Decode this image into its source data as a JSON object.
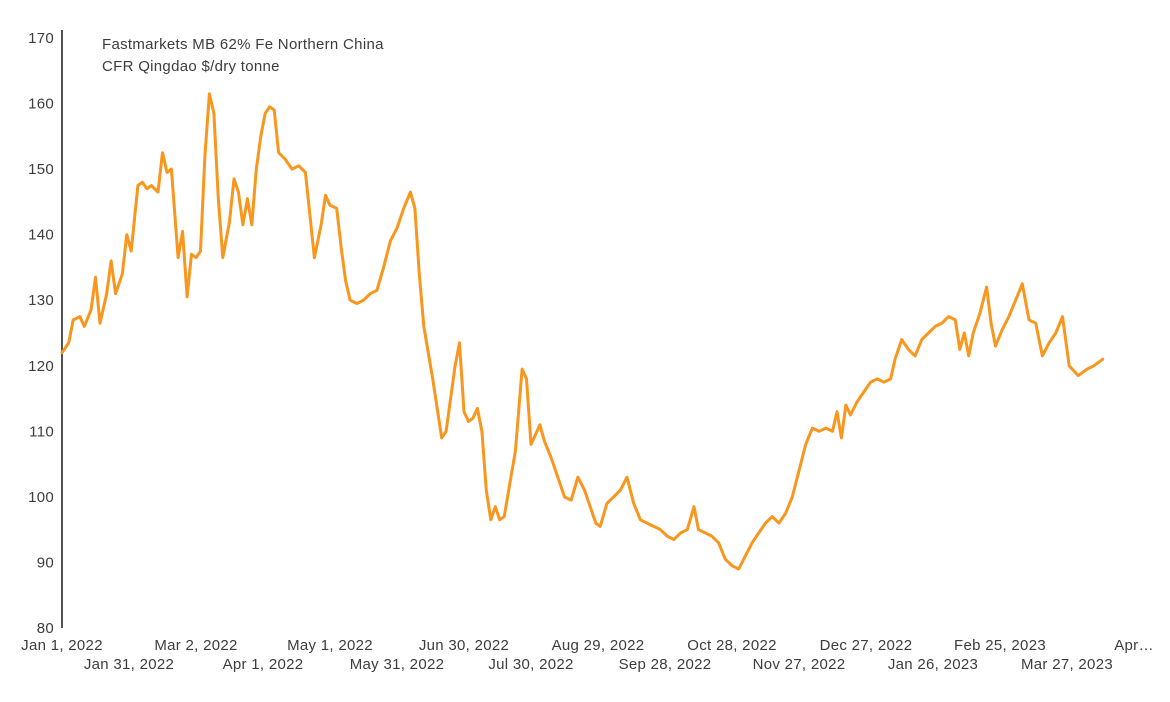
{
  "chart_data": {
    "type": "line",
    "title": "Fastmarkets MB 62% Fe Northern China CFR Qingdao $/dry tonne",
    "title_line1": "Fastmarkets MB 62% Fe Northern China",
    "title_line2": "CFR Qingdao $/dry tonne",
    "xlabel": "",
    "ylabel": "",
    "grid": false,
    "legend_position": "none",
    "colors": {
      "line": "#F8961D",
      "text": "#3D3D3D",
      "axis": "#1A1A1A",
      "background": "#FFFFFF"
    },
    "y_axis": {
      "range": [
        80,
        170
      ],
      "tick_step": 10,
      "ticks": [
        170,
        160,
        150,
        140,
        130,
        120,
        110,
        100,
        90,
        80
      ]
    },
    "x_axis": {
      "unit": "date (day offset from Jan 1, 2022)",
      "range_days": [
        0,
        480
      ],
      "ticks_row1": [
        {
          "d": 0,
          "label": "Jan 1, 2022"
        },
        {
          "d": 60,
          "label": "Mar 2, 2022"
        },
        {
          "d": 120,
          "label": "May 1, 2022"
        },
        {
          "d": 180,
          "label": "Jun 30, 2022"
        },
        {
          "d": 240,
          "label": "Aug 29, 2022"
        },
        {
          "d": 300,
          "label": "Oct 28, 2022"
        },
        {
          "d": 360,
          "label": "Dec 27, 2022"
        },
        {
          "d": 420,
          "label": "Feb 25, 2023"
        },
        {
          "d": 480,
          "label": "Apr…"
        }
      ],
      "ticks_row2": [
        {
          "d": 30,
          "label": "Jan 31, 2022"
        },
        {
          "d": 90,
          "label": "Apr 1, 2022"
        },
        {
          "d": 150,
          "label": "May 31, 2022"
        },
        {
          "d": 210,
          "label": "Jul 30, 2022"
        },
        {
          "d": 270,
          "label": "Sep 28, 2022"
        },
        {
          "d": 330,
          "label": "Nov 27, 2022"
        },
        {
          "d": 390,
          "label": "Jan 26, 2023"
        },
        {
          "d": 450,
          "label": "Mar 27, 2023"
        }
      ]
    },
    "series": [
      {
        "name": "Fastmarkets MB 62% Fe Northern China CFR Qingdao $/dry tonne",
        "color": "#F8961D",
        "points_day_value": [
          [
            0,
            122
          ],
          [
            3,
            123.5
          ],
          [
            5,
            127
          ],
          [
            8,
            127.5
          ],
          [
            10,
            126
          ],
          [
            13,
            128.5
          ],
          [
            15,
            133.5
          ],
          [
            17,
            126.5
          ],
          [
            20,
            131
          ],
          [
            22,
            136
          ],
          [
            24,
            131
          ],
          [
            27,
            134
          ],
          [
            29,
            140
          ],
          [
            31,
            137.5
          ],
          [
            34,
            147.5
          ],
          [
            36,
            148
          ],
          [
            38,
            147
          ],
          [
            40,
            147.5
          ],
          [
            43,
            146.5
          ],
          [
            45,
            152.5
          ],
          [
            47,
            149.5
          ],
          [
            49,
            150
          ],
          [
            52,
            136.5
          ],
          [
            54,
            140.5
          ],
          [
            56,
            130.5
          ],
          [
            58,
            137
          ],
          [
            60,
            136.5
          ],
          [
            62,
            137.5
          ],
          [
            64,
            152
          ],
          [
            66,
            161.5
          ],
          [
            68,
            158.5
          ],
          [
            70,
            145.5
          ],
          [
            72,
            136.5
          ],
          [
            75,
            142
          ],
          [
            77,
            148.5
          ],
          [
            79,
            146.5
          ],
          [
            81,
            141.5
          ],
          [
            83,
            145.5
          ],
          [
            85,
            141.5
          ],
          [
            87,
            150
          ],
          [
            89,
            155
          ],
          [
            91,
            158.5
          ],
          [
            93,
            159.5
          ],
          [
            95,
            159
          ],
          [
            97,
            152.5
          ],
          [
            100,
            151.5
          ],
          [
            103,
            150
          ],
          [
            106,
            150.5
          ],
          [
            109,
            149.5
          ],
          [
            111,
            143
          ],
          [
            113,
            136.5
          ],
          [
            116,
            141.5
          ],
          [
            118,
            146
          ],
          [
            120,
            144.5
          ],
          [
            123,
            144
          ],
          [
            125,
            138
          ],
          [
            127,
            133
          ],
          [
            129,
            130
          ],
          [
            132,
            129.5
          ],
          [
            135,
            130
          ],
          [
            138,
            131
          ],
          [
            141,
            131.5
          ],
          [
            144,
            135
          ],
          [
            147,
            139
          ],
          [
            150,
            141
          ],
          [
            153,
            144
          ],
          [
            156,
            146.5
          ],
          [
            158,
            144
          ],
          [
            160,
            134
          ],
          [
            162,
            126
          ],
          [
            164,
            122
          ],
          [
            166,
            118
          ],
          [
            168,
            113.5
          ],
          [
            170,
            109
          ],
          [
            172,
            110
          ],
          [
            174,
            115
          ],
          [
            176,
            120
          ],
          [
            178,
            123.5
          ],
          [
            180,
            113
          ],
          [
            182,
            111.5
          ],
          [
            184,
            112
          ],
          [
            186,
            113.5
          ],
          [
            188,
            110
          ],
          [
            190,
            101
          ],
          [
            192,
            96.5
          ],
          [
            194,
            98.5
          ],
          [
            196,
            96.5
          ],
          [
            198,
            97
          ],
          [
            200,
            101
          ],
          [
            203,
            107
          ],
          [
            206,
            119.5
          ],
          [
            208,
            118
          ],
          [
            210,
            108
          ],
          [
            212,
            109.5
          ],
          [
            214,
            111
          ],
          [
            216,
            108.5
          ],
          [
            219,
            106
          ],
          [
            222,
            103
          ],
          [
            225,
            100
          ],
          [
            228,
            99.5
          ],
          [
            231,
            103
          ],
          [
            234,
            101
          ],
          [
            237,
            98
          ],
          [
            239,
            96
          ],
          [
            241,
            95.5
          ],
          [
            244,
            99
          ],
          [
            247,
            100
          ],
          [
            250,
            101
          ],
          [
            253,
            103
          ],
          [
            256,
            99
          ],
          [
            259,
            96.5
          ],
          [
            262,
            96
          ],
          [
            265,
            95.5
          ],
          [
            268,
            95
          ],
          [
            271,
            94
          ],
          [
            274,
            93.5
          ],
          [
            277,
            94.5
          ],
          [
            280,
            95
          ],
          [
            283,
            98.5
          ],
          [
            285,
            95
          ],
          [
            288,
            94.5
          ],
          [
            291,
            94
          ],
          [
            294,
            93
          ],
          [
            297,
            90.5
          ],
          [
            300,
            89.5
          ],
          [
            303,
            89
          ],
          [
            306,
            91
          ],
          [
            309,
            93
          ],
          [
            312,
            94.5
          ],
          [
            315,
            96
          ],
          [
            318,
            97
          ],
          [
            321,
            96
          ],
          [
            324,
            97.5
          ],
          [
            327,
            100
          ],
          [
            330,
            104
          ],
          [
            333,
            108
          ],
          [
            336,
            110.5
          ],
          [
            339,
            110
          ],
          [
            342,
            110.5
          ],
          [
            345,
            110
          ],
          [
            347,
            113
          ],
          [
            349,
            109
          ],
          [
            351,
            114
          ],
          [
            353,
            112.5
          ],
          [
            356,
            114.5
          ],
          [
            359,
            116
          ],
          [
            362,
            117.5
          ],
          [
            365,
            118
          ],
          [
            368,
            117.5
          ],
          [
            371,
            118
          ],
          [
            373,
            121
          ],
          [
            376,
            124
          ],
          [
            379,
            122.5
          ],
          [
            382,
            121.5
          ],
          [
            385,
            124
          ],
          [
            388,
            125
          ],
          [
            391,
            126
          ],
          [
            394,
            126.5
          ],
          [
            397,
            127.5
          ],
          [
            400,
            127
          ],
          [
            402,
            122.5
          ],
          [
            404,
            125
          ],
          [
            406,
            121.5
          ],
          [
            408,
            125
          ],
          [
            411,
            128
          ],
          [
            414,
            132
          ],
          [
            416,
            126.5
          ],
          [
            418,
            123
          ],
          [
            421,
            125.5
          ],
          [
            424,
            127.5
          ],
          [
            427,
            130
          ],
          [
            430,
            132.5
          ],
          [
            433,
            127
          ],
          [
            436,
            126.5
          ],
          [
            439,
            121.5
          ],
          [
            442,
            123.5
          ],
          [
            445,
            125
          ],
          [
            448,
            127.5
          ],
          [
            451,
            120
          ],
          [
            455,
            118.5
          ],
          [
            459,
            119.5
          ],
          [
            462,
            120
          ],
          [
            466,
            121
          ]
        ]
      }
    ]
  }
}
